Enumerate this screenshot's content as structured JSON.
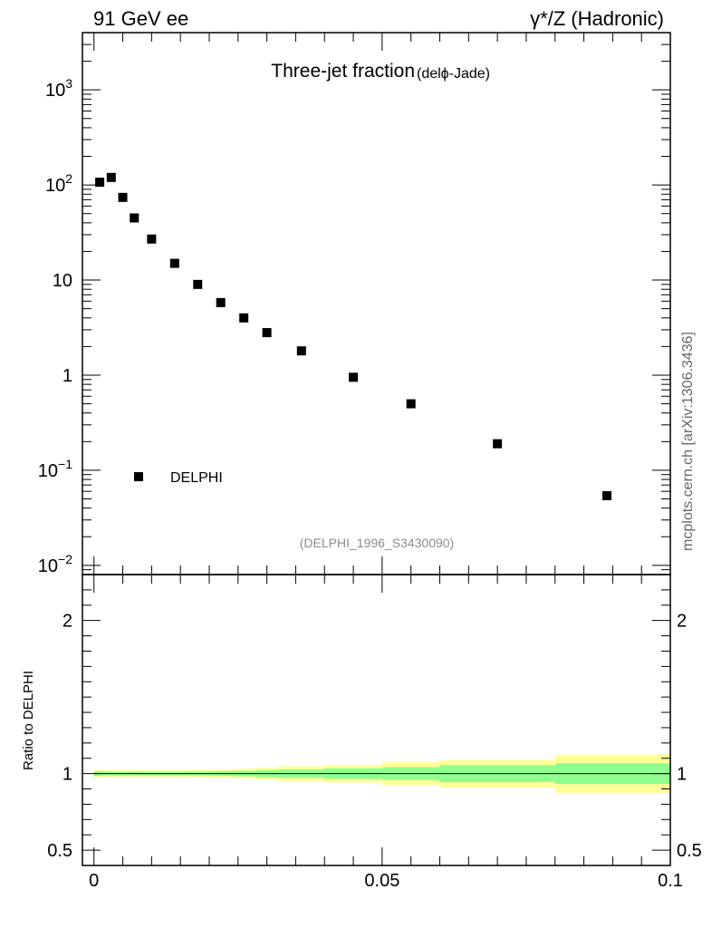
{
  "header": {
    "left": "91 GeV ee",
    "right": "γ*/Z (Hadronic)"
  },
  "watermark": "mcplots.cern.ch [arXiv:1306.3436]",
  "chart_data": [
    {
      "type": "scatter",
      "panel": "main",
      "title": "Three-jet fraction",
      "subtitle": "(delϕ-Jade)",
      "yscale": "log",
      "ylim": [
        0.008,
        4000
      ],
      "xlim": [
        -0.002,
        0.1
      ],
      "yticks": [
        {
          "value": 1000,
          "base": "10",
          "exp": "3"
        },
        {
          "value": 100,
          "base": "10",
          "exp": "2"
        },
        {
          "value": 10,
          "base": "10",
          "exp": ""
        },
        {
          "value": 1,
          "base": "1",
          "exp": ""
        },
        {
          "value": 0.1,
          "base": "10",
          "exp": "−1"
        },
        {
          "value": 0.01,
          "base": "10",
          "exp": "−2"
        }
      ],
      "legend": {
        "label": "DELPHI",
        "position": "bottom-left"
      },
      "reference": "(DELPHI_1996_S3430090)",
      "series": [
        {
          "name": "DELPHI",
          "x": [
            0.001,
            0.003,
            0.005,
            0.007,
            0.01,
            0.014,
            0.018,
            0.022,
            0.026,
            0.03,
            0.036,
            0.045,
            0.055,
            0.07,
            0.089
          ],
          "y": [
            107,
            120,
            74,
            45,
            27,
            15,
            9,
            5.8,
            4.0,
            2.8,
            1.8,
            0.95,
            0.5,
            0.19,
            0.054
          ]
        }
      ]
    },
    {
      "type": "area",
      "panel": "ratio",
      "ylabel": "Ratio to DELPHI",
      "ylim": [
        0.4,
        2.3
      ],
      "xlim": [
        -0.002,
        0.1
      ],
      "yticks": [
        {
          "value": 2,
          "label": "2"
        },
        {
          "value": 1,
          "label": "1"
        },
        {
          "value": 0.5,
          "label": "0.5"
        }
      ],
      "xticks": [
        {
          "value": 0,
          "label": "0"
        },
        {
          "value": 0.05,
          "label": "0.05"
        },
        {
          "value": 0.1,
          "label": "0.1"
        }
      ],
      "bins": [
        {
          "x0": 0.0,
          "x1": 0.002,
          "in": 0.015,
          "out": 0.025
        },
        {
          "x0": 0.002,
          "x1": 0.004,
          "in": 0.012,
          "out": 0.022
        },
        {
          "x0": 0.004,
          "x1": 0.006,
          "in": 0.012,
          "out": 0.022
        },
        {
          "x0": 0.006,
          "x1": 0.008,
          "in": 0.012,
          "out": 0.022
        },
        {
          "x0": 0.008,
          "x1": 0.012,
          "in": 0.012,
          "out": 0.022
        },
        {
          "x0": 0.012,
          "x1": 0.016,
          "in": 0.012,
          "out": 0.023
        },
        {
          "x0": 0.016,
          "x1": 0.02,
          "in": 0.013,
          "out": 0.025
        },
        {
          "x0": 0.02,
          "x1": 0.024,
          "in": 0.015,
          "out": 0.028
        },
        {
          "x0": 0.024,
          "x1": 0.028,
          "in": 0.018,
          "out": 0.032
        },
        {
          "x0": 0.028,
          "x1": 0.032,
          "in": 0.022,
          "out": 0.038
        },
        {
          "x0": 0.032,
          "x1": 0.04,
          "in": 0.028,
          "out": 0.048
        },
        {
          "x0": 0.04,
          "x1": 0.05,
          "in": 0.035,
          "out": 0.058
        },
        {
          "x0": 0.05,
          "x1": 0.06,
          "in": 0.042,
          "out": 0.075
        },
        {
          "x0": 0.06,
          "x1": 0.08,
          "in": 0.055,
          "out": 0.09
        },
        {
          "x0": 0.08,
          "x1": 0.1,
          "in": 0.068,
          "out": 0.125
        }
      ],
      "colors": {
        "inner": "#8fff8f",
        "outer": "#ffff99",
        "line": "#000000"
      }
    }
  ]
}
